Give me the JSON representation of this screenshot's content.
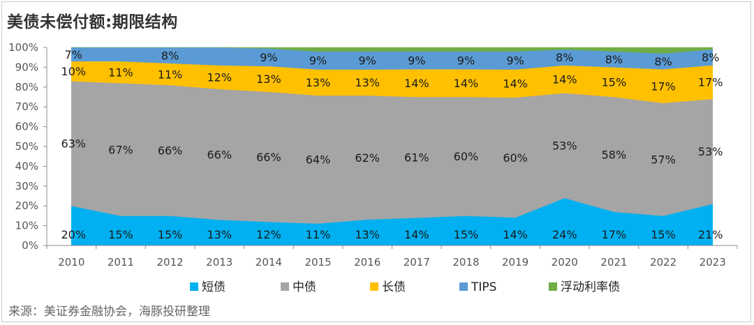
{
  "title": "美债未偿付额:期限结构",
  "source": "来源：美证券金融协会，海豚投研整理",
  "chart_data": {
    "type": "area",
    "stacked": true,
    "percent": true,
    "categories": [
      "2010",
      "2011",
      "2012",
      "2013",
      "2014",
      "2015",
      "2016",
      "2017",
      "2018",
      "2019",
      "2020",
      "2021",
      "2022",
      "2023"
    ],
    "ylim": [
      0,
      100
    ],
    "yticks": [
      "0%",
      "10%",
      "20%",
      "30%",
      "40%",
      "50%",
      "60%",
      "70%",
      "80%",
      "90%",
      "100%"
    ],
    "grid": false,
    "legend_position": "bottom",
    "series": [
      {
        "name": "短债",
        "color": "#00B0F0",
        "values": [
          20,
          15,
          15,
          13,
          12,
          11,
          13,
          14,
          15,
          14,
          24,
          17,
          15,
          21
        ],
        "labels": [
          "20%",
          "15%",
          "15%",
          "13%",
          "12%",
          "11%",
          "13%",
          "14%",
          "15%",
          "14%",
          "24%",
          "17%",
          "15%",
          "21%"
        ]
      },
      {
        "name": "中债",
        "color": "#A5A5A5",
        "values": [
          63,
          67,
          66,
          66,
          66,
          64,
          62,
          61,
          60,
          60,
          53,
          58,
          57,
          53
        ],
        "labels": [
          "63%",
          "67%",
          "66%",
          "66%",
          "66%",
          "64%",
          "62%",
          "61%",
          "60%",
          "60%",
          "53%",
          "58%",
          "57%",
          "53%"
        ]
      },
      {
        "name": "长债",
        "color": "#FFC000",
        "values": [
          10,
          11,
          11,
          12,
          13,
          13,
          13,
          14,
          14,
          14,
          14,
          15,
          17,
          17
        ],
        "labels": [
          "10%",
          "11%",
          "11%",
          "12%",
          "13%",
          "13%",
          "13%",
          "14%",
          "14%",
          "14%",
          "14%",
          "15%",
          "17%",
          "17%"
        ]
      },
      {
        "name": "TIPS",
        "color": "#5B9BD5",
        "values": [
          7,
          7,
          8,
          9,
          9,
          9,
          9,
          9,
          9,
          9,
          8,
          8,
          8,
          8
        ],
        "labels": [
          "7%",
          "",
          "8%",
          "",
          "9%",
          "9%",
          "9%",
          "9%",
          "9%",
          "9%",
          "8%",
          "8%",
          "8%",
          "8%"
        ]
      },
      {
        "name": "浮动利率债",
        "color": "#70AD47",
        "values": [
          0,
          0,
          0,
          0,
          0.5,
          2,
          2,
          2,
          2,
          2,
          1,
          2,
          3,
          1
        ],
        "labels": [
          "",
          "",
          "",
          "",
          "",
          "",
          "",
          "",
          "",
          "",
          "",
          "",
          "",
          ""
        ]
      }
    ]
  }
}
